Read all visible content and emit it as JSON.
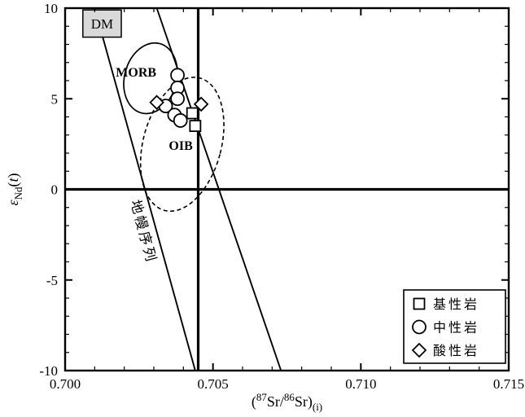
{
  "chart_data": {
    "type": "scatter",
    "title": "",
    "xlabel_parts": [
      {
        "t": "(",
        "s": "n"
      },
      {
        "t": "87",
        "s": "sup"
      },
      {
        "t": "Sr/",
        "s": "n"
      },
      {
        "t": "86",
        "s": "sup"
      },
      {
        "t": "Sr)",
        "s": "n"
      },
      {
        "t": "(i)",
        "s": "sub"
      }
    ],
    "ylabel_parts": [
      {
        "t": "ε",
        "s": "n",
        "i": true
      },
      {
        "t": "Nd",
        "s": "sub"
      },
      {
        "t": "(",
        "s": "n"
      },
      {
        "t": "t",
        "s": "n",
        "i": true
      },
      {
        "t": ")",
        "s": "n"
      }
    ],
    "xlim": [
      0.7,
      0.715
    ],
    "ylim": [
      -10,
      10
    ],
    "x_major_ticks": [
      0.7,
      0.705,
      0.71,
      0.715
    ],
    "x_tick_labels": [
      "0.700",
      "0.705",
      "0.710",
      "0.715"
    ],
    "x_minor_step": 0.001,
    "y_major_ticks": [
      -10,
      -5,
      0,
      5,
      10
    ],
    "y_tick_labels": [
      "-10",
      "-5",
      "0",
      "5",
      "10"
    ],
    "y_minor_step": 1,
    "reference_lines": {
      "horizontal_y": 0,
      "vertical_x": 0.7045
    },
    "mantle_array": {
      "label": "地幔序列",
      "label_pos": {
        "x": 0.7025,
        "y": -2.4,
        "rotation_deg": 75
      },
      "lines": [
        {
          "from": [
            0.701,
            10
          ],
          "to": [
            0.7044,
            -10
          ]
        },
        {
          "from": [
            0.7031,
            10
          ],
          "to": [
            0.7073,
            -10
          ]
        }
      ]
    },
    "fields": {
      "dm": {
        "label": "DM",
        "x_range": [
          0.7006,
          0.7019
        ],
        "y_range": [
          8.4,
          9.9
        ],
        "fill": "#d9d9d9"
      },
      "morb": {
        "label": "MORB",
        "label_pos": {
          "x": 0.7024,
          "y": 6.5
        },
        "ellipse": {
          "cx": 0.70289,
          "cy": 6.13,
          "rx": 0.00088,
          "ry": 1.98,
          "rotation_deg": 15
        },
        "line_style": "solid"
      },
      "oib": {
        "label": "OIB",
        "label_pos": {
          "x": 0.70391,
          "y": 2.45
        },
        "ellipse": {
          "cx": 0.70396,
          "cy": 2.49,
          "rx": 0.00132,
          "ry": 3.78,
          "rotation_deg": 15
        },
        "line_style": "dashed"
      }
    },
    "series": [
      {
        "name": "基性岩",
        "marker": "square",
        "points": [
          [
            0.7043,
            4.2
          ],
          [
            0.7044,
            3.5
          ]
        ]
      },
      {
        "name": "中性岩",
        "marker": "circle",
        "points": [
          [
            0.7038,
            6.3
          ],
          [
            0.7038,
            5.6
          ],
          [
            0.7038,
            5.0
          ],
          [
            0.7034,
            4.6
          ],
          [
            0.7037,
            4.1
          ],
          [
            0.7039,
            3.8
          ]
        ]
      },
      {
        "name": "酸性岩",
        "marker": "diamond",
        "points": [
          [
            0.7031,
            4.8
          ],
          [
            0.7046,
            4.7
          ]
        ]
      }
    ],
    "legend": {
      "position": "bottom-right",
      "entries": [
        "基性岩",
        "中性岩",
        "酸性岩"
      ]
    },
    "colors": {
      "stroke": "#000000",
      "marker_fill": "#ffffff",
      "dm_fill": "#d9d9d9",
      "background": "#ffffff"
    }
  }
}
